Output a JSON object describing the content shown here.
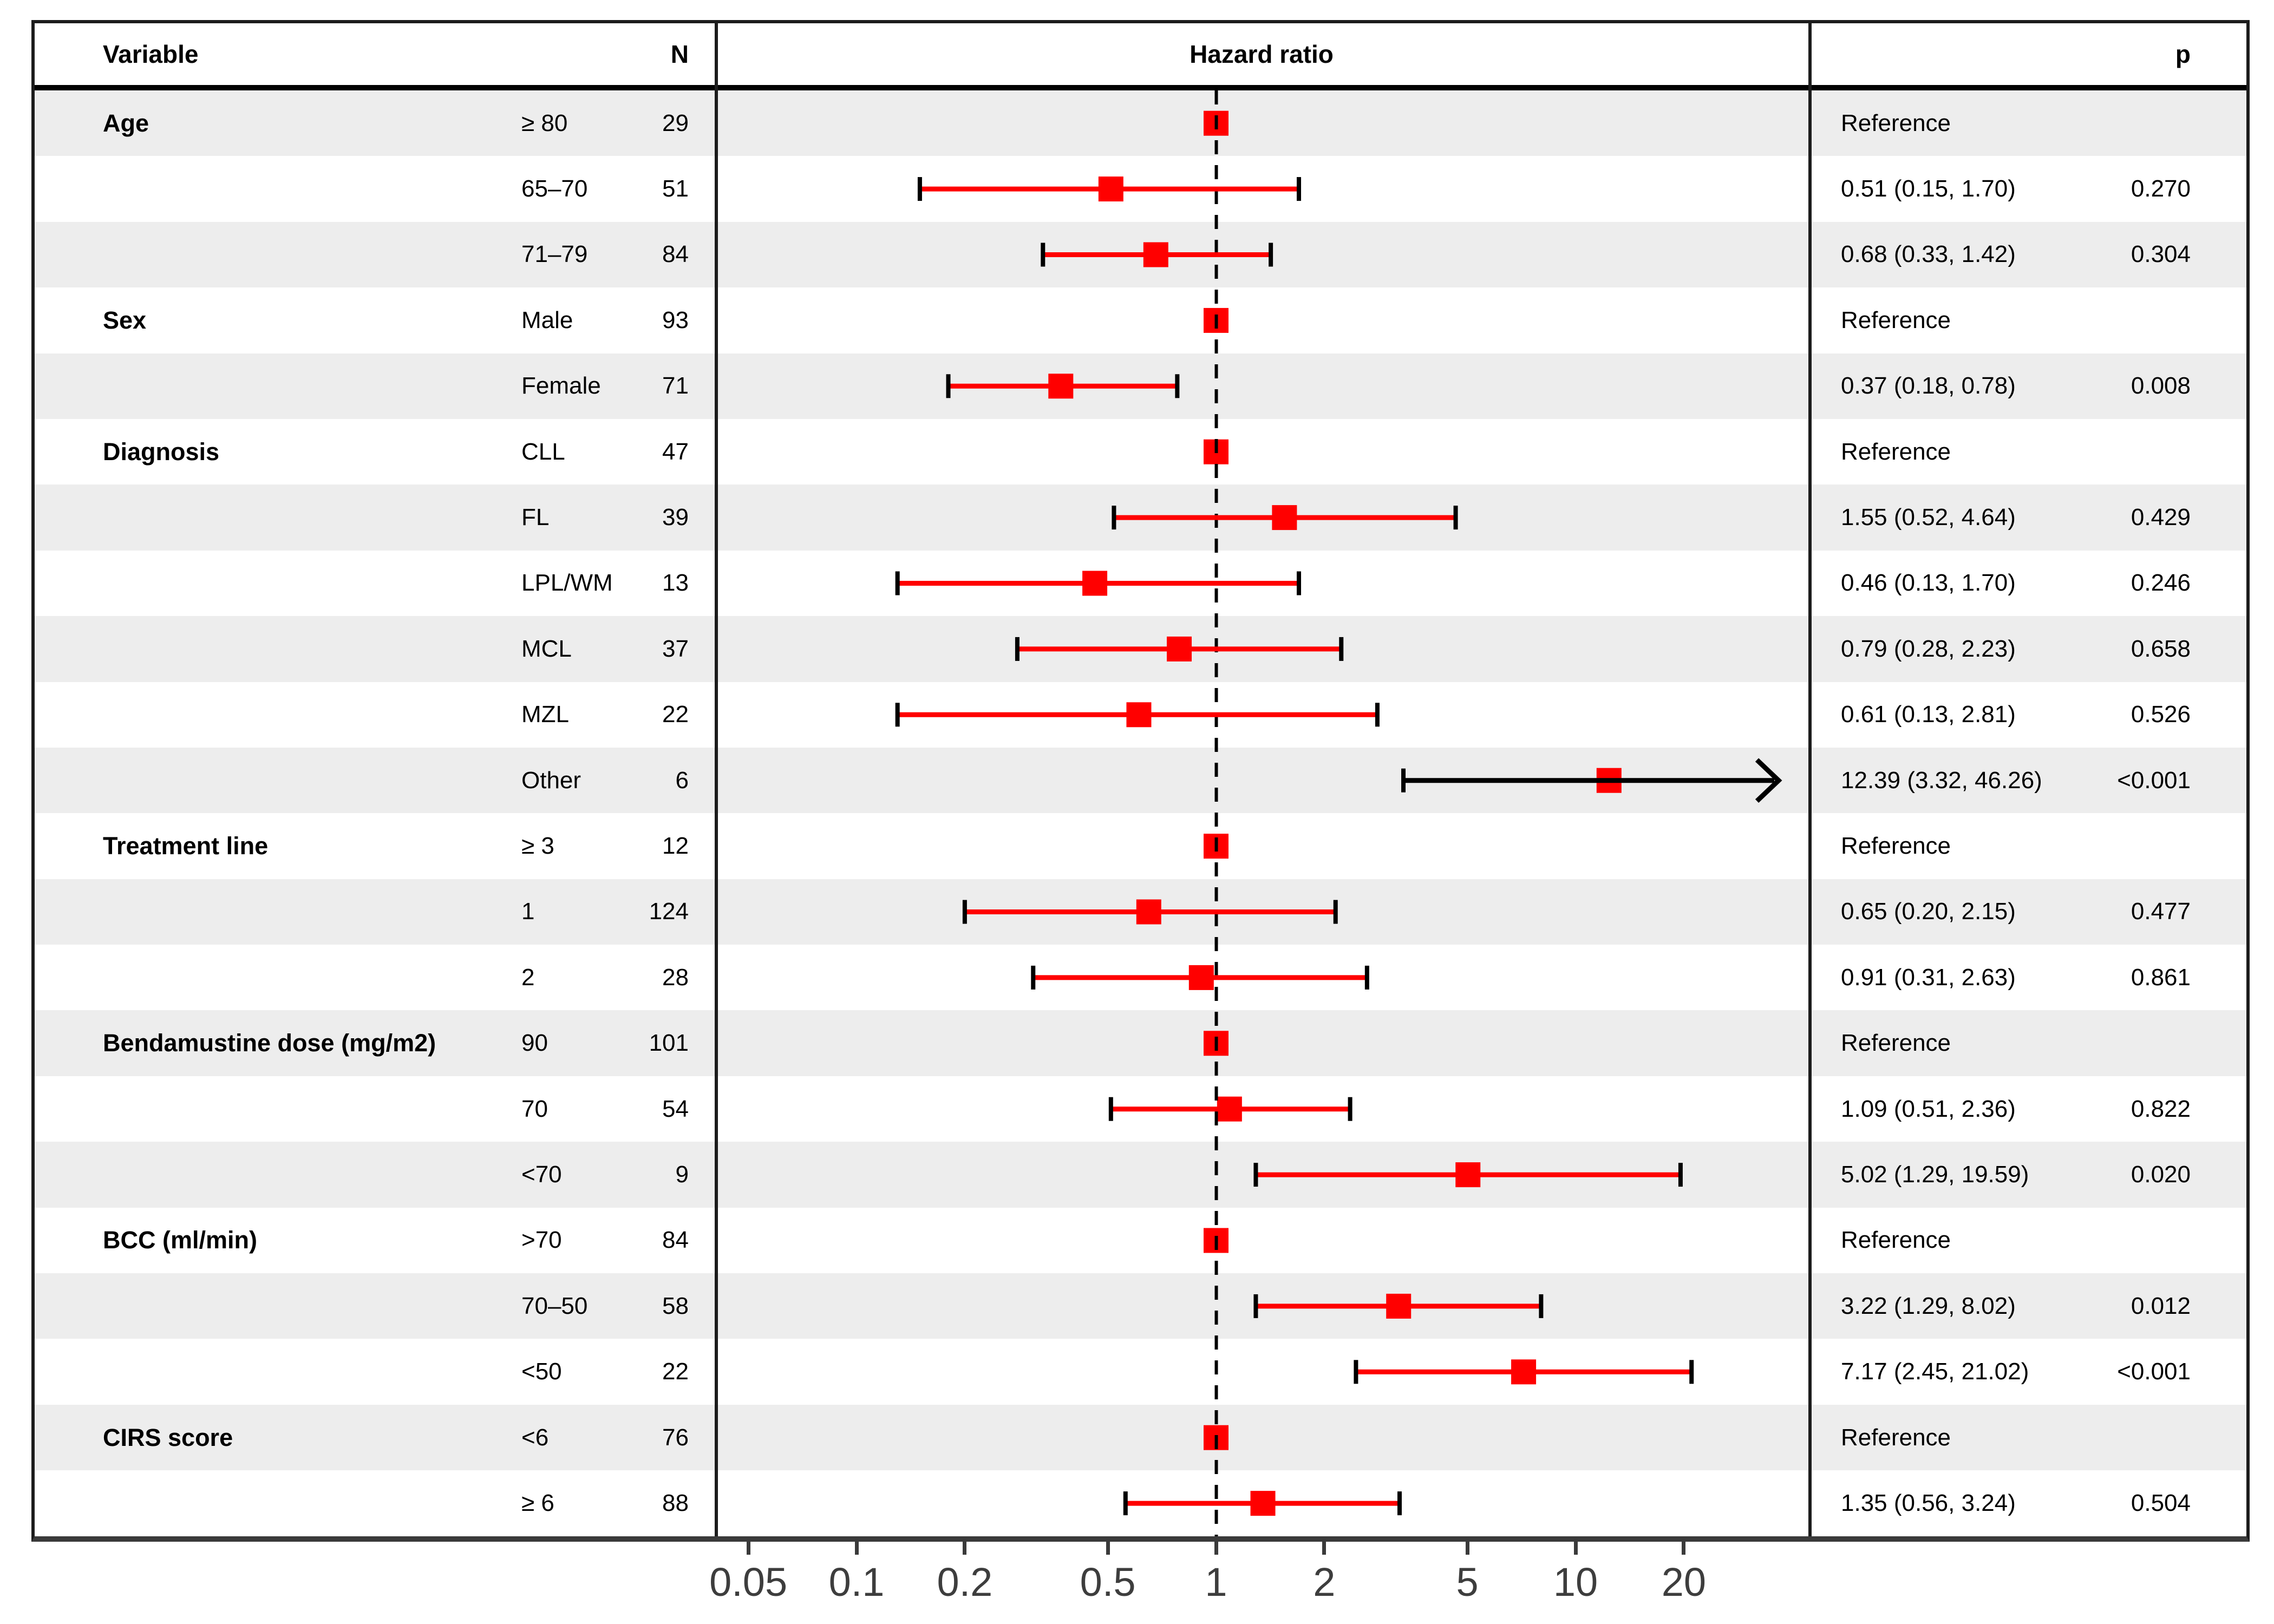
{
  "header": {
    "variable": "Variable",
    "n": "N",
    "hazard_ratio": "Hazard ratio",
    "p": "p"
  },
  "chart_data": {
    "type": "forest",
    "title": "Hazard ratio",
    "xlabel": "",
    "ylabel": "",
    "x_scale": "log",
    "x_range": [
      0.04,
      37
    ],
    "reference_line": 1,
    "grid": false,
    "legend_position": "none",
    "x_ticks": [
      "0.05",
      "0.1",
      "0.2",
      "0.5",
      "1",
      "2",
      "5",
      "10",
      "20"
    ],
    "columns": [
      "Variable",
      "N",
      "Hazard ratio",
      "p"
    ],
    "colors": {
      "marker": "#FF0000",
      "ci_line": "#FF0000",
      "cap": "#000000",
      "clipped_arrow_line": "#000000",
      "reference_dash": "#000000",
      "zebra_stripe": "#EDEDED",
      "axis": "#3a3a3a"
    },
    "rows": [
      {
        "variable": "Age",
        "level": "≥ 80",
        "n": "29",
        "estimate": "Reference",
        "p": "",
        "ref": true,
        "hr": 1
      },
      {
        "variable": "",
        "level": "65–70",
        "n": "51",
        "estimate": "0.51 (0.15, 1.70)",
        "p": "0.270",
        "hr": 0.51,
        "lo": 0.15,
        "hi": 1.7
      },
      {
        "variable": "",
        "level": "71–79",
        "n": "84",
        "estimate": "0.68 (0.33, 1.42)",
        "p": "0.304",
        "hr": 0.68,
        "lo": 0.33,
        "hi": 1.42
      },
      {
        "variable": "Sex",
        "level": "Male",
        "n": "93",
        "estimate": "Reference",
        "p": "",
        "ref": true,
        "hr": 1
      },
      {
        "variable": "",
        "level": "Female",
        "n": "71",
        "estimate": "0.37 (0.18, 0.78)",
        "p": "0.008",
        "hr": 0.37,
        "lo": 0.18,
        "hi": 0.78
      },
      {
        "variable": "Diagnosis",
        "level": "CLL",
        "n": "47",
        "estimate": "Reference",
        "p": "",
        "ref": true,
        "hr": 1
      },
      {
        "variable": "",
        "level": "FL",
        "n": "39",
        "estimate": "1.55 (0.52, 4.64)",
        "p": "0.429",
        "hr": 1.55,
        "lo": 0.52,
        "hi": 4.64
      },
      {
        "variable": "",
        "level": "LPL/WM",
        "n": "13",
        "estimate": "0.46 (0.13, 1.70)",
        "p": "0.246",
        "hr": 0.46,
        "lo": 0.13,
        "hi": 1.7
      },
      {
        "variable": "",
        "level": "MCL",
        "n": "37",
        "estimate": "0.79 (0.28, 2.23)",
        "p": "0.658",
        "hr": 0.79,
        "lo": 0.28,
        "hi": 2.23
      },
      {
        "variable": "",
        "level": "MZL",
        "n": "22",
        "estimate": "0.61 (0.13, 2.81)",
        "p": "0.526",
        "hr": 0.61,
        "lo": 0.13,
        "hi": 2.81
      },
      {
        "variable": "",
        "level": "Other",
        "n": "6",
        "estimate": "12.39 (3.32, 46.26)",
        "p": "<0.001",
        "hr": 12.39,
        "lo": 3.32,
        "hi": 46.26,
        "arrow": true
      },
      {
        "variable": "Treatment line",
        "level": "≥ 3",
        "n": "12",
        "estimate": "Reference",
        "p": "",
        "ref": true,
        "hr": 1
      },
      {
        "variable": "",
        "level": "1",
        "n": "124",
        "estimate": "0.65 (0.20, 2.15)",
        "p": "0.477",
        "hr": 0.65,
        "lo": 0.2,
        "hi": 2.15
      },
      {
        "variable": "",
        "level": "2",
        "n": "28",
        "estimate": "0.91 (0.31, 2.63)",
        "p": "0.861",
        "hr": 0.91,
        "lo": 0.31,
        "hi": 2.63
      },
      {
        "variable": "Bendamustine dose (mg/m2)",
        "level": "90",
        "n": "101",
        "estimate": "Reference",
        "p": "",
        "ref": true,
        "hr": 1
      },
      {
        "variable": "",
        "level": "70",
        "n": "54",
        "estimate": "1.09 (0.51, 2.36)",
        "p": "0.822",
        "hr": 1.09,
        "lo": 0.51,
        "hi": 2.36
      },
      {
        "variable": "",
        "level": "<70",
        "n": "9",
        "estimate": "5.02 (1.29, 19.59)",
        "p": "0.020",
        "hr": 5.02,
        "lo": 1.29,
        "hi": 19.59
      },
      {
        "variable": "BCC (ml/min)",
        "level": ">70",
        "n": "84",
        "estimate": "Reference",
        "p": "",
        "ref": true,
        "hr": 1
      },
      {
        "variable": "",
        "level": "70–50",
        "n": "58",
        "estimate": "3.22 (1.29, 8.02)",
        "p": "0.012",
        "hr": 3.22,
        "lo": 1.29,
        "hi": 8.02
      },
      {
        "variable": "",
        "level": "<50",
        "n": "22",
        "estimate": "7.17 (2.45, 21.02)",
        "p": "<0.001",
        "hr": 7.17,
        "lo": 2.45,
        "hi": 21.02
      },
      {
        "variable": "CIRS score",
        "level": "<6",
        "n": "76",
        "estimate": "Reference",
        "p": "",
        "ref": true,
        "hr": 1
      },
      {
        "variable": "",
        "level": "≥ 6",
        "n": "88",
        "estimate": "1.35 (0.56, 3.24)",
        "p": "0.504",
        "hr": 1.35,
        "lo": 0.56,
        "hi": 3.24
      }
    ]
  }
}
